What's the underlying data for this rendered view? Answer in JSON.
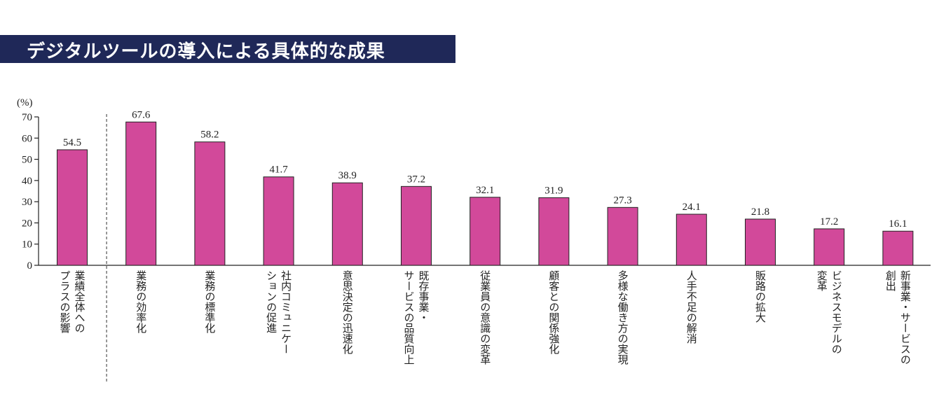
{
  "title": "デジタルツールの導入による具体的な成果",
  "colors": {
    "bar": "#d2499a",
    "title_bg": "#1f2858",
    "title_fg": "#ffffff"
  },
  "chart_data": {
    "type": "bar",
    "ylabel": "(%)",
    "ylim": [
      0,
      70
    ],
    "yticks": [
      0,
      10,
      20,
      30,
      40,
      50,
      60,
      70
    ],
    "categories": [
      [
        "業績全体への",
        "プラスの影響"
      ],
      [
        "業務の効率化"
      ],
      [
        "業務の標準化"
      ],
      [
        "社内コミュニケー",
        "ションの促進"
      ],
      [
        "意思決定の迅速化"
      ],
      [
        "既存事業・",
        "サービスの品質向上"
      ],
      [
        "従業員の意識の変革"
      ],
      [
        "顧客との関係強化"
      ],
      [
        "多様な働き方の実現"
      ],
      [
        "人手不足の解消"
      ],
      [
        "販路の拡大"
      ],
      [
        "ビジネスモデルの",
        "変革"
      ],
      [
        "新事業・サービスの",
        "創出"
      ]
    ],
    "values": [
      54.5,
      67.6,
      58.2,
      41.7,
      38.9,
      37.2,
      32.1,
      31.9,
      27.3,
      24.1,
      21.8,
      17.2,
      16.1
    ],
    "value_labels": [
      "54.5",
      "67.6",
      "58.2",
      "41.7",
      "38.9",
      "37.2",
      "32.1",
      "31.9",
      "27.3",
      "24.1",
      "21.8",
      "17.2",
      "16.1"
    ],
    "separator_after_index": 0
  }
}
